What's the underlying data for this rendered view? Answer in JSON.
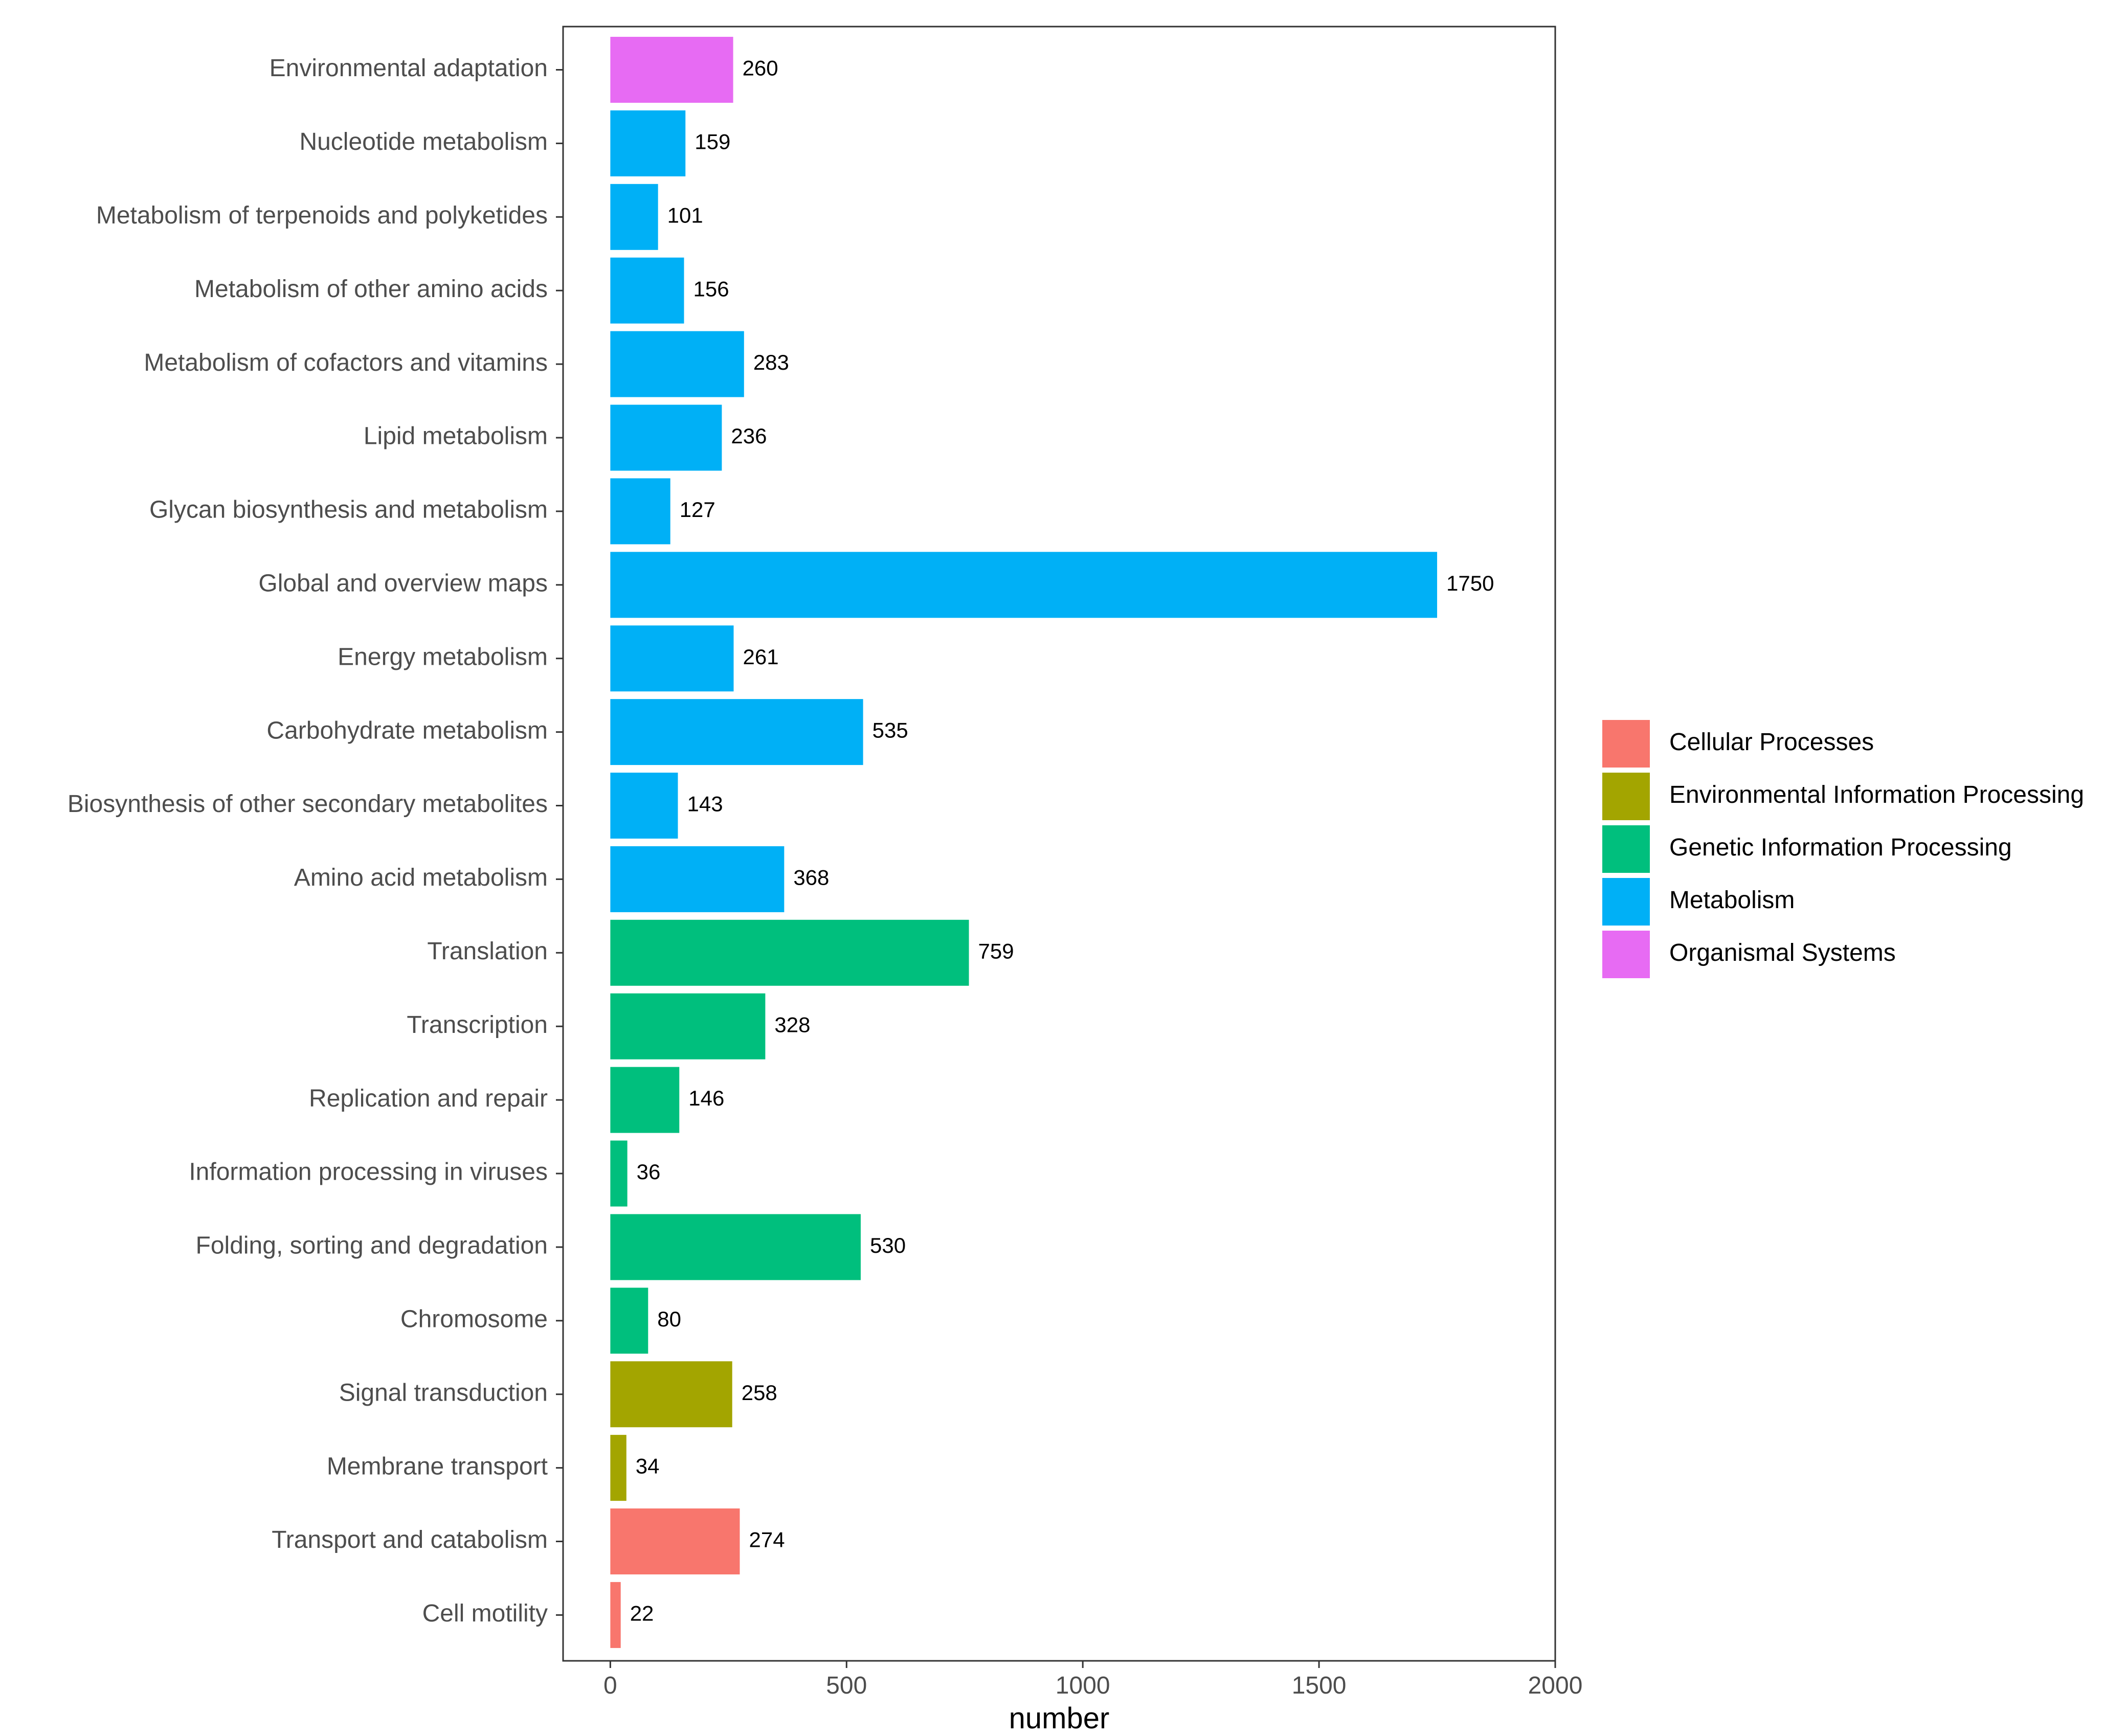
{
  "chart_data": {
    "type": "bar",
    "orientation": "horizontal",
    "title": "",
    "xlabel": "number",
    "ylabel": "",
    "xlim": [
      -100,
      2000
    ],
    "x_ticks": [
      0,
      500,
      1000,
      1500,
      2000
    ],
    "grid": false,
    "legend_position": "right",
    "legend": [
      {
        "name": "Cellular Processes",
        "color": "#F8766D"
      },
      {
        "name": "Environmental Information Processing",
        "color": "#A3A500"
      },
      {
        "name": "Genetic Information Processing",
        "color": "#00BF7D"
      },
      {
        "name": "Metabolism",
        "color": "#00B0F6"
      },
      {
        "name": "Organismal Systems",
        "color": "#E76BF3"
      }
    ],
    "bars": [
      {
        "category": "Environmental adaptation",
        "value": 260,
        "group": "Organismal Systems"
      },
      {
        "category": "Nucleotide metabolism",
        "value": 159,
        "group": "Metabolism"
      },
      {
        "category": "Metabolism of terpenoids and polyketides",
        "value": 101,
        "group": "Metabolism"
      },
      {
        "category": "Metabolism of other amino acids",
        "value": 156,
        "group": "Metabolism"
      },
      {
        "category": "Metabolism of cofactors and vitamins",
        "value": 283,
        "group": "Metabolism"
      },
      {
        "category": "Lipid metabolism",
        "value": 236,
        "group": "Metabolism"
      },
      {
        "category": "Glycan biosynthesis and metabolism",
        "value": 127,
        "group": "Metabolism"
      },
      {
        "category": "Global and overview maps",
        "value": 1750,
        "group": "Metabolism"
      },
      {
        "category": "Energy metabolism",
        "value": 261,
        "group": "Metabolism"
      },
      {
        "category": "Carbohydrate metabolism",
        "value": 535,
        "group": "Metabolism"
      },
      {
        "category": "Biosynthesis of other secondary metabolites",
        "value": 143,
        "group": "Metabolism"
      },
      {
        "category": "Amino acid metabolism",
        "value": 368,
        "group": "Metabolism"
      },
      {
        "category": "Translation",
        "value": 759,
        "group": "Genetic Information Processing"
      },
      {
        "category": "Transcription",
        "value": 328,
        "group": "Genetic Information Processing"
      },
      {
        "category": "Replication and repair",
        "value": 146,
        "group": "Genetic Information Processing"
      },
      {
        "category": "Information processing in viruses",
        "value": 36,
        "group": "Genetic Information Processing"
      },
      {
        "category": "Folding, sorting and degradation",
        "value": 530,
        "group": "Genetic Information Processing"
      },
      {
        "category": "Chromosome",
        "value": 80,
        "group": "Genetic Information Processing"
      },
      {
        "category": "Signal transduction",
        "value": 258,
        "group": "Environmental Information Processing"
      },
      {
        "category": "Membrane transport",
        "value": 34,
        "group": "Environmental Information Processing"
      },
      {
        "category": "Transport and catabolism",
        "value": 274,
        "group": "Cellular Processes"
      },
      {
        "category": "Cell motility",
        "value": 22,
        "group": "Cellular Processes"
      }
    ]
  }
}
